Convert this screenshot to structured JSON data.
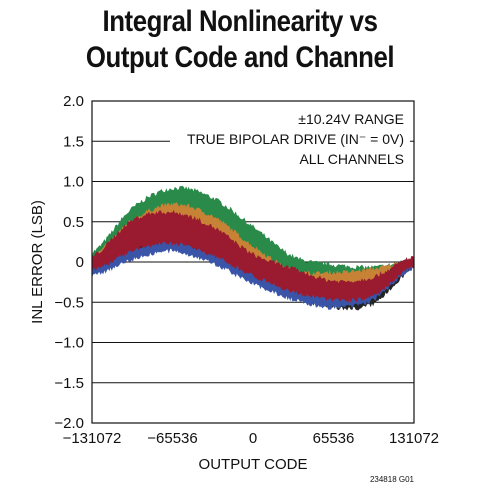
{
  "page": {
    "title_line1": "Integral Nonlinearity vs",
    "title_line2": "Output Code and Channel",
    "figure_id": "234818 G01"
  },
  "chart_data": {
    "type": "line",
    "title": "Integral Nonlinearity vs Output Code and Channel",
    "xlabel": "OUTPUT CODE",
    "ylabel": "INL ERROR (LSB)",
    "xlim": [
      -131072,
      131072
    ],
    "ylim": [
      -2.0,
      2.0
    ],
    "xticks": [
      -131072,
      -65536,
      0,
      65536,
      131072
    ],
    "xtick_labels": [
      "−131072",
      "−65536",
      "0",
      "65536",
      "131072"
    ],
    "yticks": [
      2.0,
      1.5,
      1.0,
      0.5,
      0,
      -0.5,
      -1.0,
      -1.5,
      -2.0
    ],
    "ytick_labels": [
      "2.0",
      "1.5",
      "1.0",
      "0.5",
      "0",
      "−0.5",
      "−1.0",
      "−1.5",
      "−2.0"
    ],
    "grid": "horizontal",
    "annotations": [
      "±10.24V RANGE",
      "TRUE BIPOLAR DRIVE (IN⁻ = 0V)",
      "ALL CHANNELS"
    ],
    "series": [
      {
        "color": "#2a8a4a",
        "x": [
          -131072,
          -98304,
          -65536,
          -32768,
          0,
          32768,
          65536,
          98304,
          131072
        ],
        "lower": [
          -0.05,
          0.4,
          0.55,
          0.4,
          0.05,
          -0.15,
          -0.15,
          -0.2,
          0.0
        ],
        "upper": [
          0.1,
          0.65,
          0.9,
          0.78,
          0.42,
          0.05,
          -0.05,
          -0.08,
          0.0
        ]
      },
      {
        "color": "#c88236",
        "x": [
          -131072,
          -98304,
          -65536,
          -32768,
          0,
          32768,
          65536,
          98304,
          131072
        ],
        "lower": [
          -0.1,
          0.28,
          0.45,
          0.3,
          -0.02,
          -0.25,
          -0.32,
          -0.3,
          0.0
        ],
        "upper": [
          0.05,
          0.5,
          0.7,
          0.55,
          0.18,
          -0.12,
          -0.15,
          -0.1,
          0.0
        ]
      },
      {
        "color": "#242424",
        "x": [
          -131072,
          -98304,
          -65536,
          -32768,
          0,
          32768,
          65536,
          98304,
          131072
        ],
        "lower": [
          -0.12,
          0.1,
          0.2,
          0.05,
          -0.2,
          -0.4,
          -0.55,
          -0.5,
          -0.05
        ],
        "upper": [
          0.0,
          0.25,
          0.35,
          0.22,
          -0.05,
          -0.25,
          -0.35,
          -0.25,
          0.05
        ]
      },
      {
        "color": "#3a55a8",
        "x": [
          -131072,
          -98304,
          -65536,
          -32768,
          0,
          32768,
          65536,
          98304,
          131072
        ],
        "lower": [
          -0.15,
          0.05,
          0.15,
          0.0,
          -0.25,
          -0.45,
          -0.55,
          -0.45,
          -0.05
        ],
        "upper": [
          -0.02,
          0.15,
          0.25,
          0.1,
          -0.12,
          -0.32,
          -0.42,
          -0.3,
          0.02
        ]
      },
      {
        "color": "#9a1b30",
        "x": [
          -131072,
          -98304,
          -65536,
          -32768,
          0,
          32768,
          65536,
          98304,
          131072
        ],
        "lower": [
          -0.08,
          0.15,
          0.25,
          0.1,
          -0.15,
          -0.35,
          -0.45,
          -0.4,
          -0.03
        ],
        "upper": [
          0.05,
          0.5,
          0.6,
          0.42,
          0.08,
          -0.1,
          -0.25,
          -0.2,
          0.05
        ]
      }
    ]
  }
}
